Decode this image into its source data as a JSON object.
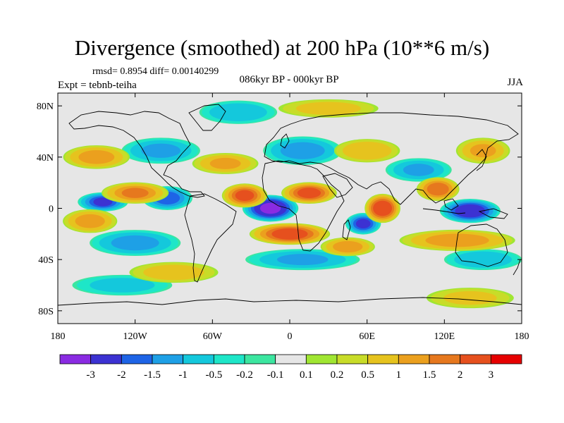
{
  "title": "Divergence (smoothed) at 200 hPa (10**6 m/s)",
  "stats": "rmsd= 0.8954 diff= 0.00140299",
  "experiment": "Expt = tebnb-teiha",
  "period": "086kyr BP - 000kyr BP",
  "season": "JJA",
  "map": {
    "projection": "cylindrical equidistant",
    "lon_range": [
      -180,
      180
    ],
    "lat_range": [
      -90,
      90
    ],
    "x_ticks": [
      {
        "lon": -180,
        "label": "180"
      },
      {
        "lon": -120,
        "label": "120W"
      },
      {
        "lon": -60,
        "label": "60W"
      },
      {
        "lon": 0,
        "label": "0"
      },
      {
        "lon": 60,
        "label": "60E"
      },
      {
        "lon": 120,
        "label": "120E"
      },
      {
        "lon": 180,
        "label": "180"
      }
    ],
    "y_ticks": [
      {
        "lat": 80,
        "label": "80N"
      },
      {
        "lat": 40,
        "label": "40N"
      },
      {
        "lat": 0,
        "label": "0"
      },
      {
        "lat": -40,
        "label": "40S"
      },
      {
        "lat": -80,
        "label": "80S"
      }
    ],
    "anomalies": [
      {
        "lon": -15,
        "lat": 0,
        "value": -3.2,
        "rx": 20,
        "ry": 9
      },
      {
        "lon": 140,
        "lat": -2,
        "value": -2.6,
        "rx": 22,
        "ry": 8
      },
      {
        "lon": -145,
        "lat": 5,
        "value": -2.0,
        "rx": 18,
        "ry": 6
      },
      {
        "lon": -95,
        "lat": 8,
        "value": -1.8,
        "rx": 18,
        "ry": 8
      },
      {
        "lon": 57,
        "lat": -12,
        "value": -2.0,
        "rx": 12,
        "ry": 7
      },
      {
        "lon": 10,
        "lat": 45,
        "value": -1.3,
        "rx": 30,
        "ry": 10
      },
      {
        "lon": -100,
        "lat": 45,
        "value": -1.1,
        "rx": 30,
        "ry": 9
      },
      {
        "lon": -120,
        "lat": -27,
        "value": -1.2,
        "rx": 35,
        "ry": 9
      },
      {
        "lon": 100,
        "lat": 30,
        "value": -1.0,
        "rx": 25,
        "ry": 8
      },
      {
        "lon": -40,
        "lat": 75,
        "value": -0.9,
        "rx": 30,
        "ry": 8
      },
      {
        "lon": 10,
        "lat": -40,
        "value": -1.0,
        "rx": 45,
        "ry": 7
      },
      {
        "lon": 150,
        "lat": -40,
        "value": -0.9,
        "rx": 30,
        "ry": 7
      },
      {
        "lon": -130,
        "lat": -60,
        "value": -0.6,
        "rx": 40,
        "ry": 7
      },
      {
        "lon": 0,
        "lat": -20,
        "value": 2.4,
        "rx": 30,
        "ry": 7
      },
      {
        "lon": -35,
        "lat": 10,
        "value": 2.1,
        "rx": 16,
        "ry": 8
      },
      {
        "lon": 15,
        "lat": 12,
        "value": 2.2,
        "rx": 20,
        "ry": 7
      },
      {
        "lon": 72,
        "lat": 0,
        "value": 2.6,
        "rx": 12,
        "ry": 10
      },
      {
        "lon": 115,
        "lat": 15,
        "value": 1.8,
        "rx": 15,
        "ry": 8
      },
      {
        "lon": -120,
        "lat": 12,
        "value": 1.5,
        "rx": 25,
        "ry": 7
      },
      {
        "lon": -155,
        "lat": -10,
        "value": 1.2,
        "rx": 20,
        "ry": 8
      },
      {
        "lon": 130,
        "lat": -25,
        "value": 1.3,
        "rx": 45,
        "ry": 7
      },
      {
        "lon": 45,
        "lat": -30,
        "value": 1.2,
        "rx": 20,
        "ry": 6
      },
      {
        "lon": -150,
        "lat": 40,
        "value": 1.2,
        "rx": 25,
        "ry": 8
      },
      {
        "lon": 150,
        "lat": 45,
        "value": 1.0,
        "rx": 20,
        "ry": 9
      },
      {
        "lon": -50,
        "lat": 35,
        "value": 1.0,
        "rx": 25,
        "ry": 7
      },
      {
        "lon": 60,
        "lat": 45,
        "value": 0.9,
        "rx": 25,
        "ry": 8
      },
      {
        "lon": -90,
        "lat": -50,
        "value": 0.7,
        "rx": 35,
        "ry": 7
      },
      {
        "lon": 30,
        "lat": 78,
        "value": 0.6,
        "rx": 40,
        "ry": 6
      },
      {
        "lon": 140,
        "lat": -70,
        "value": 0.5,
        "rx": 35,
        "ry": 7
      }
    ]
  },
  "colorbar": {
    "colors": [
      "#8a2be2",
      "#3c32d2",
      "#1e64e6",
      "#1ea0e6",
      "#14c8dc",
      "#1ee6c8",
      "#3ce6a0",
      "#e6e6e6",
      "#a0e632",
      "#c8dc28",
      "#e6c31e",
      "#eba01e",
      "#e6781e",
      "#e6501e",
      "#e60000"
    ],
    "labels": [
      "-3",
      "-2",
      "-1.5",
      "-1",
      "-0.5",
      "-0.2",
      "-0.1",
      "0.1",
      "0.2",
      "0.5",
      "1",
      "1.5",
      "2",
      "3"
    ],
    "levels": [
      -3,
      -2,
      -1.5,
      -1,
      -0.5,
      -0.2,
      -0.1,
      0.1,
      0.2,
      0.5,
      1,
      1.5,
      2,
      3
    ]
  }
}
